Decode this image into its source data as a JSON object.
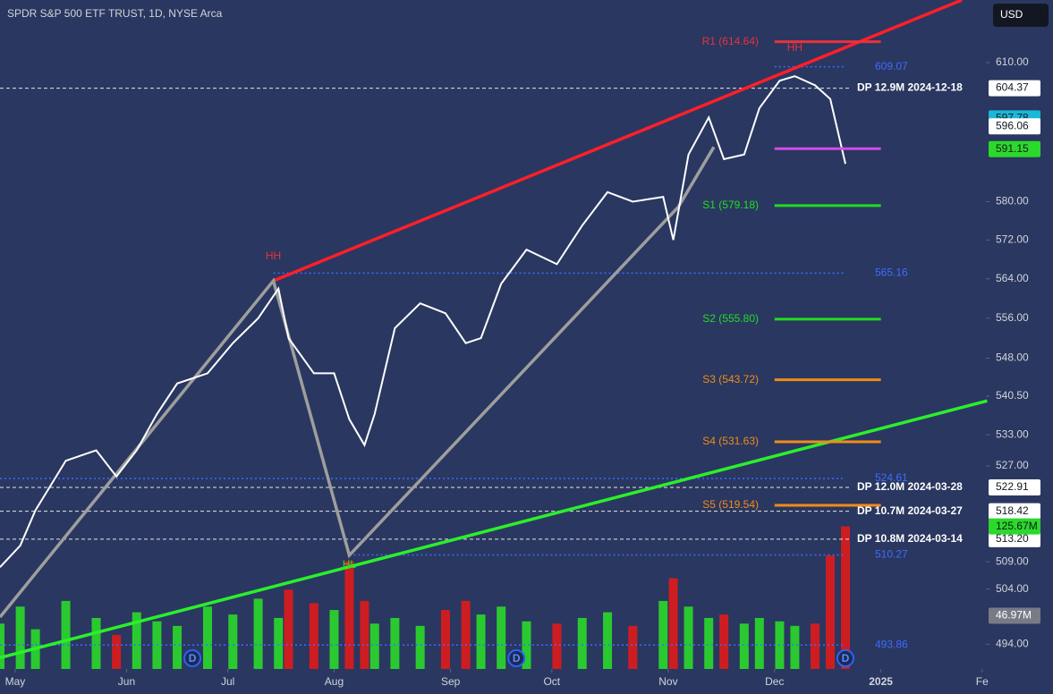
{
  "header": {
    "title": "SPDR S&P 500 ETF TRUST, 1D, NYSE Arca",
    "currency_button": "USD"
  },
  "chart_data": {
    "type": "line",
    "log_scale": true,
    "xlim": [
      0,
      208
    ],
    "ylim": [
      489.6,
      624.0
    ],
    "vlim": [
      0,
      590
    ],
    "yticks": [
      {
        "value": 610,
        "label": "610.00"
      },
      {
        "value": 580,
        "label": "580.00"
      },
      {
        "value": 572,
        "label": "572.00"
      },
      {
        "value": 564,
        "label": "564.00"
      },
      {
        "value": 556,
        "label": "556.00"
      },
      {
        "value": 548,
        "label": "548.00"
      },
      {
        "value": 540.5,
        "label": "540.50"
      },
      {
        "value": 533,
        "label": "533.00"
      },
      {
        "value": 527,
        "label": "527.00"
      },
      {
        "value": 509,
        "label": "509.00"
      },
      {
        "value": 504,
        "label": "504.00"
      },
      {
        "value": 494,
        "label": "494.00"
      }
    ],
    "xticks": [
      {
        "value": 3,
        "label": "May"
      },
      {
        "value": 25,
        "label": "Jun"
      },
      {
        "value": 45,
        "label": "Jul"
      },
      {
        "value": 66,
        "label": "Aug"
      },
      {
        "value": 89,
        "label": "Sep"
      },
      {
        "value": 109,
        "label": "Oct"
      },
      {
        "value": 132,
        "label": "Nov"
      },
      {
        "value": 153,
        "label": "Dec"
      },
      {
        "value": 174,
        "label": "2025"
      },
      {
        "value": 194,
        "label": "Fe"
      }
    ],
    "x": [
      0,
      4,
      7,
      13,
      19,
      23,
      27,
      31,
      35,
      41,
      46,
      51,
      55,
      57,
      62,
      66,
      69,
      72,
      74,
      78,
      83,
      88,
      92,
      95,
      99,
      104,
      110,
      115,
      120,
      125,
      131,
      133,
      136,
      140,
      143,
      147,
      150,
      154,
      157,
      161,
      164,
      167
    ],
    "values": [
      508,
      512,
      518.6,
      528,
      530,
      525,
      530,
      537,
      543,
      545,
      551,
      556,
      562,
      552,
      545,
      545,
      536,
      531,
      537,
      554,
      559,
      557,
      551,
      552,
      563,
      570,
      567,
      575,
      582,
      580,
      581,
      572,
      590,
      598,
      589,
      590,
      600,
      606,
      607,
      605,
      602,
      588
    ],
    "color": "#ffffff",
    "volume": {
      "values": [
        40,
        55,
        35,
        60,
        45,
        30,
        50,
        42,
        38,
        55,
        48,
        62,
        45,
        70,
        58,
        52,
        95,
        60,
        40,
        45,
        38,
        52,
        60,
        48,
        55,
        42,
        40,
        45,
        50,
        38,
        60,
        80,
        55,
        45,
        48,
        40,
        45,
        42,
        38,
        40,
        100,
        125.67
      ],
      "up_color": "#2bd92b",
      "down_color": "#e01b1b"
    },
    "volume_tags": [
      {
        "value": 125.67,
        "label": "125.67M",
        "color": "#2bd92b"
      },
      {
        "value": 46.97,
        "label": "46.97M",
        "color": "#787b86"
      }
    ],
    "levels": [
      {
        "label": "R1 (614.64)",
        "value": 614.64,
        "color": "#e8323c"
      },
      {
        "value": 591.26,
        "color": "#d24ce8"
      },
      {
        "label": "S1 (579.18)",
        "value": 579.18,
        "color": "#22dd22"
      },
      {
        "label": "S2 (555.80)",
        "value": 555.8,
        "color": "#22dd22"
      },
      {
        "label": "S3 (543.72)",
        "value": 543.72,
        "color": "#f08c1a"
      },
      {
        "label": "S4 (531.63)",
        "value": 531.63,
        "color": "#f08c1a"
      },
      {
        "label": "S5 (519.54)",
        "value": 519.54,
        "color": "#f08c1a"
      }
    ],
    "level_x": [
      153,
      174
    ],
    "reference_lines": [
      {
        "value": 609.07,
        "label": "609.07",
        "from": 153
      },
      {
        "value": 565.16,
        "label": "565.16",
        "from": 54
      },
      {
        "value": 524.61,
        "label": "524.61",
        "from": 0
      },
      {
        "value": 510.27,
        "label": "510.27",
        "from": 69
      },
      {
        "value": 493.86,
        "label": "493.86",
        "from": 0
      }
    ],
    "reference_color": "#3d6cff",
    "reference_to": 167,
    "dark_pool": [
      {
        "label": "DP 12.9M 2024-12-18",
        "value": 604.37,
        "value_label": "604.37"
      },
      {
        "label": "DP 12.0M 2024-03-28",
        "value": 522.91,
        "value_label": "522.91"
      },
      {
        "label": "DP 10.7M 2024-03-27",
        "value": 518.42,
        "value_label": "518.42"
      },
      {
        "label": "DP 10.8M 2024-03-14",
        "value": 513.2,
        "value_label": "513.20"
      }
    ],
    "price_tags": [
      {
        "value": 597.78,
        "label": "597.78",
        "color": "#1ab8d6"
      },
      {
        "value": 596.06,
        "label": "596.06",
        "color": "#ffffff"
      },
      {
        "value": 591.15,
        "label": "591.15",
        "color": "#2bd92b"
      }
    ],
    "trend_lines": [
      {
        "color": "#ff1f2a",
        "x": [
          54,
          190
        ],
        "values": [
          563.6,
          624.0
        ]
      },
      {
        "color": "#2bef2b",
        "x": [
          0,
          195
        ],
        "values": [
          491.6,
          539.6
        ]
      },
      {
        "color": "#9e9e9e",
        "x": [
          0,
          54,
          69,
          134,
          141
        ],
        "values": [
          498.9,
          563.6,
          510.2,
          578.9,
          591.6
        ]
      }
    ],
    "pivots": [
      {
        "label": "HH",
        "x": 54,
        "value": 568.6,
        "color": "#e8323c"
      },
      {
        "label": "HH",
        "x": 157,
        "value": 613.2,
        "color": "#e8323c"
      },
      {
        "label": "HL",
        "x": 69,
        "value": 508.4,
        "color": "#2bd92b"
      }
    ],
    "dividends": [
      {
        "x": 38,
        "label": "D"
      },
      {
        "x": 102,
        "label": "D"
      },
      {
        "x": 167,
        "label": "D"
      }
    ]
  }
}
